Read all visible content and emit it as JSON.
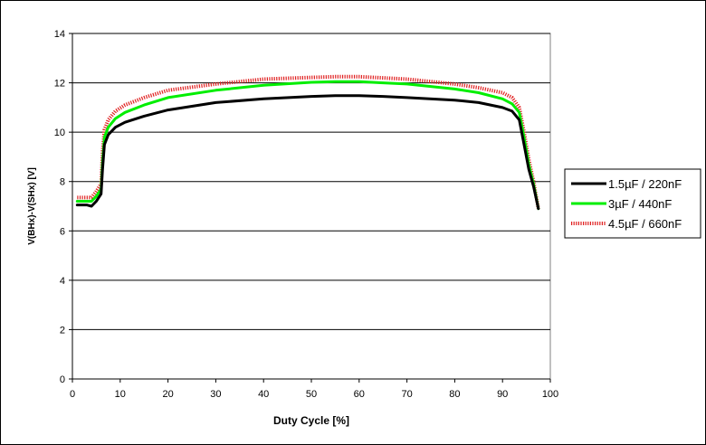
{
  "chart_data": {
    "type": "line",
    "title": "",
    "xlabel": "Duty Cycle [%]",
    "ylabel": "V(BHx)-V(SHx) [V]",
    "xlim": [
      0,
      100
    ],
    "ylim": [
      0,
      14
    ],
    "xticks": [
      0,
      10,
      20,
      30,
      40,
      50,
      60,
      70,
      80,
      90,
      100
    ],
    "yticks": [
      0,
      2,
      4,
      6,
      8,
      10,
      12,
      14
    ],
    "grid": "horizontal",
    "legend_position": "right",
    "series": [
      {
        "name": "1.5µF / 220nF",
        "color": "#000000",
        "style": "solid",
        "x": [
          1,
          3,
          4,
          5,
          6,
          6.3,
          6.7,
          7.5,
          9,
          11,
          15,
          20,
          30,
          40,
          50,
          55,
          60,
          65,
          70,
          80,
          85,
          90,
          92,
          93.5,
          94.5,
          95.5,
          96.5,
          97.5
        ],
        "y": [
          7.05,
          7.05,
          7.0,
          7.2,
          7.5,
          8.5,
          9.5,
          9.9,
          10.2,
          10.4,
          10.65,
          10.9,
          11.2,
          11.35,
          11.45,
          11.48,
          11.48,
          11.45,
          11.4,
          11.3,
          11.2,
          11.0,
          10.85,
          10.5,
          9.5,
          8.5,
          7.8,
          6.9
        ]
      },
      {
        "name": "3µF / 440nF",
        "color": "#00ee00",
        "style": "solid",
        "x": [
          1,
          3,
          4,
          5,
          6,
          6.3,
          6.7,
          7.5,
          9,
          11,
          15,
          20,
          30,
          40,
          50,
          55,
          60,
          65,
          70,
          80,
          85,
          90,
          92,
          93.5,
          94.5,
          95.5,
          96.5,
          97.5
        ],
        "y": [
          7.2,
          7.2,
          7.2,
          7.4,
          7.7,
          8.8,
          9.8,
          10.2,
          10.55,
          10.8,
          11.1,
          11.4,
          11.7,
          11.9,
          12.02,
          12.05,
          12.05,
          12.0,
          11.95,
          11.75,
          11.6,
          11.35,
          11.15,
          10.8,
          9.8,
          8.7,
          7.9,
          6.9
        ]
      },
      {
        "name": "4.5µF / 660nF",
        "color": "#e02020",
        "style": "dotted",
        "x": [
          1,
          3,
          4,
          5,
          6,
          6.3,
          6.7,
          7.5,
          9,
          11,
          15,
          20,
          30,
          40,
          50,
          55,
          60,
          65,
          70,
          80,
          85,
          90,
          92,
          93.5,
          94.5,
          95.5,
          96.5,
          97.5
        ],
        "y": [
          7.35,
          7.35,
          7.35,
          7.6,
          7.9,
          9.2,
          10.1,
          10.5,
          10.85,
          11.1,
          11.4,
          11.7,
          11.95,
          12.15,
          12.22,
          12.25,
          12.25,
          12.2,
          12.15,
          11.95,
          11.8,
          11.6,
          11.4,
          11.0,
          10.0,
          8.9,
          8.0,
          6.9
        ]
      }
    ]
  }
}
